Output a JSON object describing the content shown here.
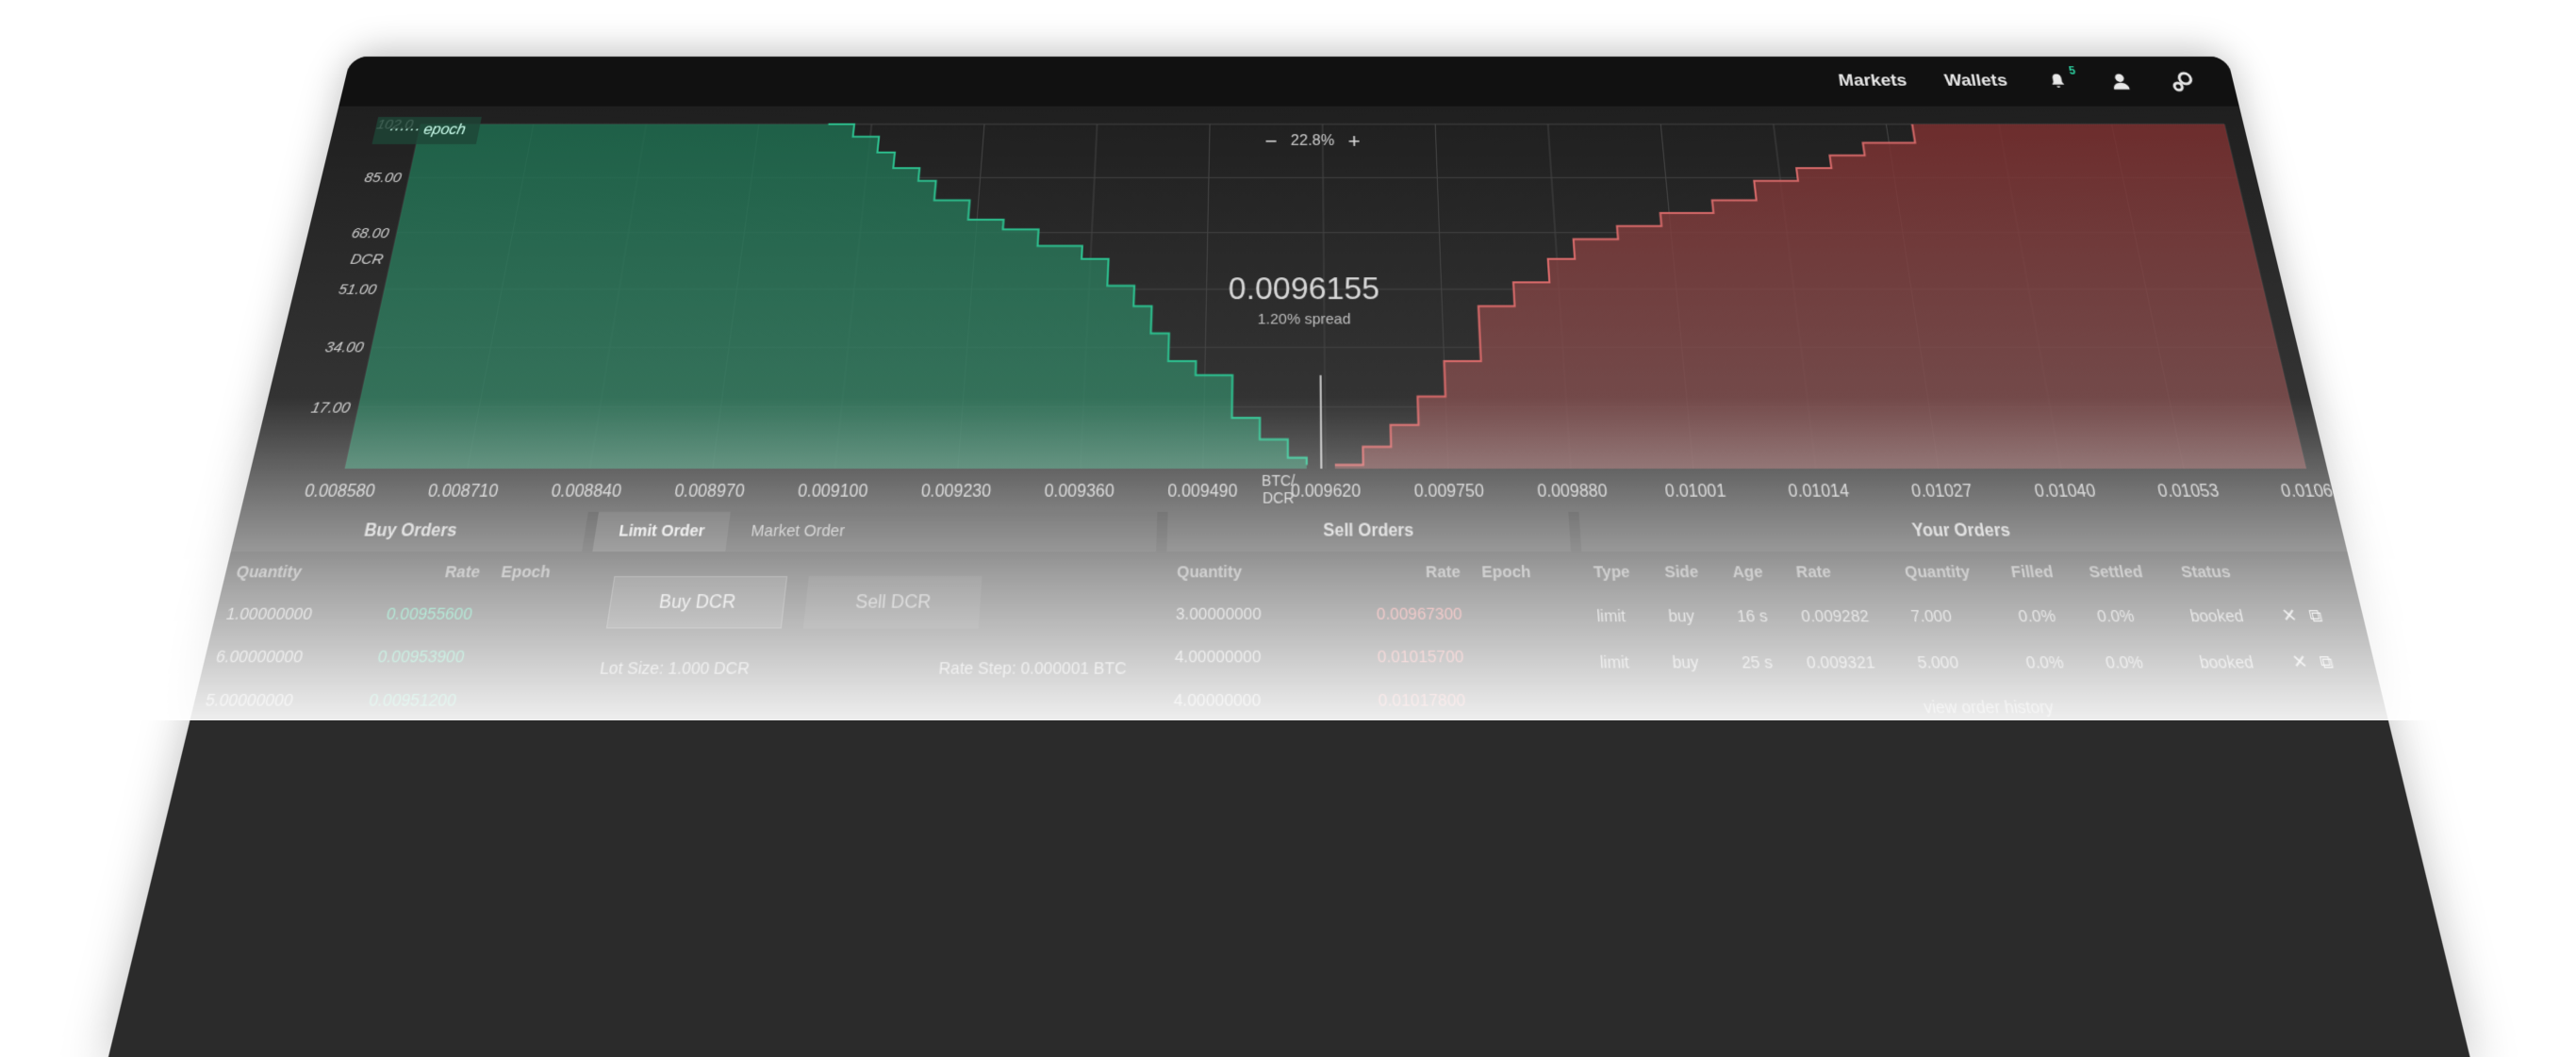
{
  "header": {
    "nav": [
      "Markets",
      "Wallets"
    ],
    "notification_count": "5",
    "icons": [
      "bell-icon",
      "user-icon",
      "settings-icon"
    ]
  },
  "chart_data": {
    "type": "area",
    "legend": "epoch",
    "zoom": "22.8%",
    "mid_price": "0.0096155",
    "spread": "1.20% spread",
    "ylabel": "DCR",
    "xlabel": "BTC/\nDCR",
    "y_ticks": [
      "102.0",
      "85.00",
      "68.00",
      "51.00",
      "34.00",
      "17.00"
    ],
    "x_ticks": [
      "0.008580",
      "0.008710",
      "0.008840",
      "0.008970",
      "0.009100",
      "0.009230",
      "0.009360",
      "0.009490",
      "0.009620",
      "0.009750",
      "0.009880",
      "0.01001",
      "0.01014",
      "0.01027",
      "0.01040",
      "0.01053",
      "0.01066"
    ],
    "ylim": [
      0,
      102
    ],
    "xlim": [
      0.00858,
      0.01066
    ],
    "series": [
      {
        "name": "buy",
        "color": "#2dbf8e",
        "x": [
          0.00905,
          0.00908,
          0.00911,
          0.00913,
          0.00916,
          0.00918,
          0.00922,
          0.00926,
          0.0093,
          0.00935,
          0.00938,
          0.00941,
          0.00943,
          0.00945,
          0.00948,
          0.00952,
          0.00955,
          0.00958,
          0.0096
        ],
        "y": [
          102,
          98,
          93,
          88,
          84,
          78,
          72,
          69,
          64,
          60,
          52,
          46,
          38,
          30,
          26,
          14,
          8,
          3,
          1
        ]
      },
      {
        "name": "sell",
        "color": "#d86a6a",
        "x": [
          0.00963,
          0.00966,
          0.00969,
          0.00972,
          0.00975,
          0.00979,
          0.00983,
          0.00987,
          0.0099,
          0.00995,
          0.01,
          0.01006,
          0.01011,
          0.01016,
          0.0102,
          0.01024,
          0.0103
        ],
        "y": [
          1,
          6,
          12,
          20,
          30,
          46,
          53,
          60,
          66,
          70,
          74,
          78,
          84,
          88,
          92,
          96,
          102
        ]
      }
    ]
  },
  "buy_orders": {
    "title": "Buy Orders",
    "columns": [
      "Quantity",
      "Rate",
      "Epoch"
    ],
    "rows": [
      [
        "1.00000000",
        "0.00955600",
        ""
      ],
      [
        "6.00000000",
        "0.00953900",
        ""
      ],
      [
        "5.00000000",
        "0.00951200",
        ""
      ]
    ]
  },
  "order_form": {
    "tabs": [
      "Limit Order",
      "Market Order"
    ],
    "buy_button": "Buy DCR",
    "sell_button": "Sell DCR",
    "lot_size": "Lot Size: 1.000 DCR",
    "rate_step": "Rate Step: 0.000001 BTC"
  },
  "sell_orders": {
    "title": "Sell Orders",
    "columns": [
      "Quantity",
      "Rate",
      "Epoch"
    ],
    "rows": [
      [
        "3.00000000",
        "0.00967300",
        ""
      ],
      [
        "4.00000000",
        "0.01015700",
        ""
      ],
      [
        "4.00000000",
        "0.01017800",
        ""
      ]
    ]
  },
  "your_orders": {
    "title": "Your Orders",
    "columns": [
      "Type",
      "Side",
      "Age",
      "Rate",
      "Quantity",
      "Filled",
      "Settled",
      "Status"
    ],
    "rows": [
      [
        "limit",
        "buy",
        "16 s",
        "0.009282",
        "7.000",
        "0.0%",
        "0.0%",
        "booked"
      ],
      [
        "limit",
        "buy",
        "25 s",
        "0.009321",
        "5.000",
        "0.0%",
        "0.0%",
        "booked"
      ]
    ],
    "history_link": "view order history"
  },
  "colors": {
    "buy": "#2dbf8e",
    "sell": "#d86a6a",
    "bar": "#111111"
  }
}
